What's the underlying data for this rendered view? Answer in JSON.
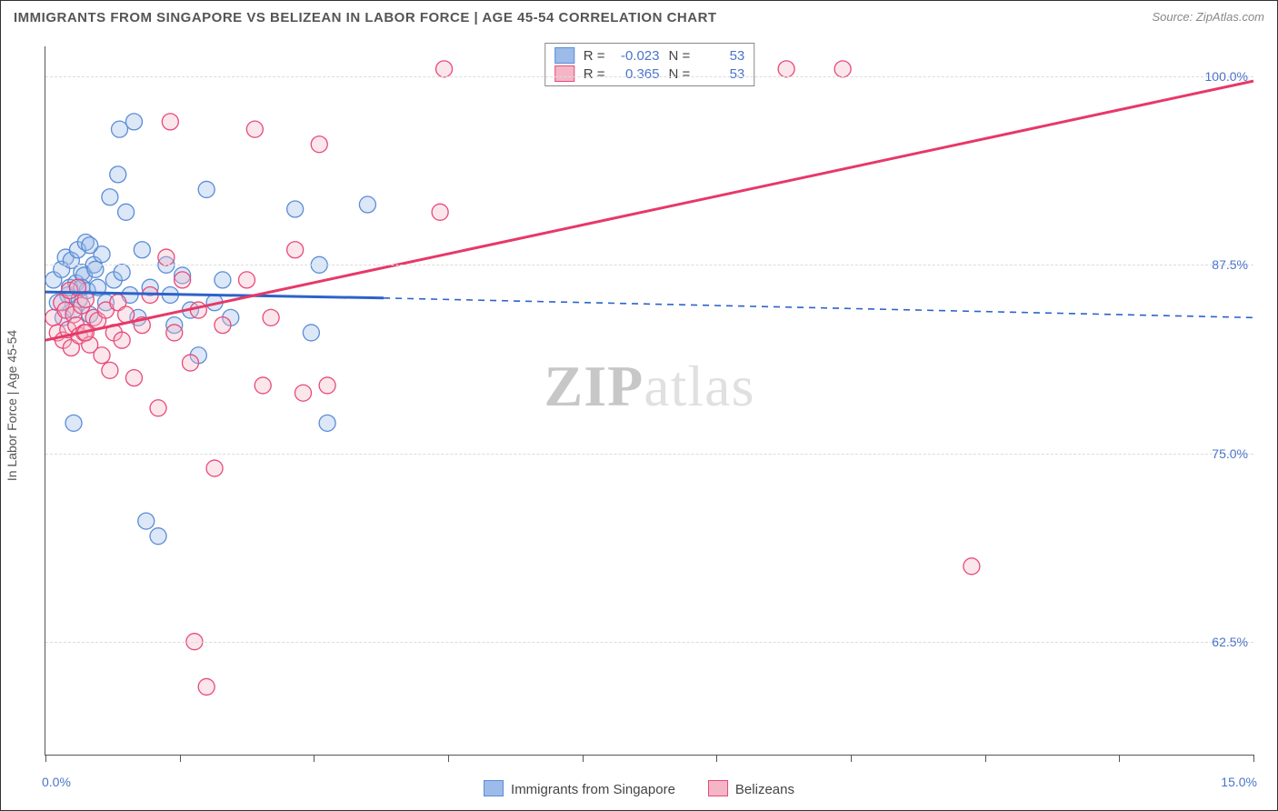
{
  "title": "IMMIGRANTS FROM SINGAPORE VS BELIZEAN IN LABOR FORCE | AGE 45-54 CORRELATION CHART",
  "source_label": "Source: ZipAtlas.com",
  "ylabel": "In Labor Force | Age 45-54",
  "watermark_a": "ZIP",
  "watermark_b": "atlas",
  "chart": {
    "type": "scatter",
    "background_color": "#ffffff",
    "grid_color": "#dcdcdc",
    "axis_color": "#555555",
    "xlim": [
      0.0,
      15.0
    ],
    "ylim": [
      55.0,
      102.0
    ],
    "xtick_positions": [
      0,
      1.67,
      3.33,
      5.0,
      6.67,
      8.33,
      10.0,
      11.67,
      13.33,
      15.0
    ],
    "ytick_values": [
      62.5,
      75.0,
      87.5,
      100.0
    ],
    "ytick_labels": [
      "62.5%",
      "75.0%",
      "87.5%",
      "100.0%"
    ],
    "xaxis_label_left": "0.0%",
    "xaxis_label_right": "15.0%",
    "marker_radius": 9,
    "marker_fill_opacity": 0.35,
    "marker_stroke_width": 1.3,
    "line_stroke_width": 3,
    "series": [
      {
        "name": "Immigrants from Singapore",
        "color_fill": "#9cbbe8",
        "color_stroke": "#5b8dd6",
        "line_color": "#2d63c8",
        "r_value": "-0.023",
        "n_value": "53",
        "trend_segments": [
          {
            "x1": 0.0,
            "y1": 85.7,
            "x2": 4.2,
            "y2": 85.3,
            "dashed": false
          },
          {
            "x1": 4.2,
            "y1": 85.3,
            "x2": 15.0,
            "y2": 84.0,
            "dashed": true
          }
        ],
        "points": [
          {
            "x": 0.1,
            "y": 86.5
          },
          {
            "x": 0.15,
            "y": 85.0
          },
          {
            "x": 0.2,
            "y": 87.2
          },
          {
            "x": 0.22,
            "y": 84.0
          },
          {
            "x": 0.25,
            "y": 88.0
          },
          {
            "x": 0.28,
            "y": 85.5
          },
          {
            "x": 0.3,
            "y": 86.0
          },
          {
            "x": 0.32,
            "y": 87.8
          },
          {
            "x": 0.35,
            "y": 84.5
          },
          {
            "x": 0.38,
            "y": 86.3
          },
          {
            "x": 0.4,
            "y": 88.5
          },
          {
            "x": 0.42,
            "y": 85.2
          },
          {
            "x": 0.45,
            "y": 87.0
          },
          {
            "x": 0.48,
            "y": 86.8
          },
          {
            "x": 0.5,
            "y": 89.0
          },
          {
            "x": 0.52,
            "y": 85.8
          },
          {
            "x": 0.55,
            "y": 84.2
          },
          {
            "x": 0.6,
            "y": 87.5
          },
          {
            "x": 0.65,
            "y": 86.0
          },
          {
            "x": 0.7,
            "y": 88.2
          },
          {
            "x": 0.75,
            "y": 85.0
          },
          {
            "x": 0.8,
            "y": 92.0
          },
          {
            "x": 0.85,
            "y": 86.5
          },
          {
            "x": 0.9,
            "y": 93.5
          },
          {
            "x": 0.92,
            "y": 96.5
          },
          {
            "x": 0.95,
            "y": 87.0
          },
          {
            "x": 1.0,
            "y": 91.0
          },
          {
            "x": 1.05,
            "y": 85.5
          },
          {
            "x": 1.1,
            "y": 97.0
          },
          {
            "x": 1.15,
            "y": 84.0
          },
          {
            "x": 1.2,
            "y": 88.5
          },
          {
            "x": 1.25,
            "y": 70.5
          },
          {
            "x": 1.3,
            "y": 86.0
          },
          {
            "x": 1.4,
            "y": 69.5
          },
          {
            "x": 1.5,
            "y": 87.5
          },
          {
            "x": 1.55,
            "y": 85.5
          },
          {
            "x": 1.6,
            "y": 83.5
          },
          {
            "x": 1.7,
            "y": 86.8
          },
          {
            "x": 1.8,
            "y": 84.5
          },
          {
            "x": 1.9,
            "y": 81.5
          },
          {
            "x": 2.0,
            "y": 92.5
          },
          {
            "x": 2.1,
            "y": 85.0
          },
          {
            "x": 2.2,
            "y": 86.5
          },
          {
            "x": 2.3,
            "y": 84.0
          },
          {
            "x": 3.1,
            "y": 91.2
          },
          {
            "x": 3.3,
            "y": 83.0
          },
          {
            "x": 3.4,
            "y": 87.5
          },
          {
            "x": 3.5,
            "y": 77.0
          },
          {
            "x": 4.0,
            "y": 91.5
          },
          {
            "x": 0.35,
            "y": 77.0
          },
          {
            "x": 0.55,
            "y": 88.8
          },
          {
            "x": 0.45,
            "y": 86.0
          },
          {
            "x": 0.62,
            "y": 87.2
          }
        ]
      },
      {
        "name": "Belizeans",
        "color_fill": "#f4b6c6",
        "color_stroke": "#e84a7a",
        "line_color": "#e63968",
        "r_value": "0.365",
        "n_value": "53",
        "trend_segments": [
          {
            "x1": 0.0,
            "y1": 82.5,
            "x2": 15.0,
            "y2": 99.7,
            "dashed": false
          }
        ],
        "points": [
          {
            "x": 0.1,
            "y": 84.0
          },
          {
            "x": 0.15,
            "y": 83.0
          },
          {
            "x": 0.2,
            "y": 85.0
          },
          {
            "x": 0.22,
            "y": 82.5
          },
          {
            "x": 0.25,
            "y": 84.5
          },
          {
            "x": 0.28,
            "y": 83.2
          },
          {
            "x": 0.3,
            "y": 85.8
          },
          {
            "x": 0.32,
            "y": 82.0
          },
          {
            "x": 0.35,
            "y": 84.2
          },
          {
            "x": 0.38,
            "y": 83.5
          },
          {
            "x": 0.4,
            "y": 86.0
          },
          {
            "x": 0.42,
            "y": 82.8
          },
          {
            "x": 0.45,
            "y": 84.8
          },
          {
            "x": 0.48,
            "y": 83.0
          },
          {
            "x": 0.5,
            "y": 85.2
          },
          {
            "x": 0.55,
            "y": 82.2
          },
          {
            "x": 0.6,
            "y": 84.0
          },
          {
            "x": 0.65,
            "y": 83.8
          },
          {
            "x": 0.7,
            "y": 81.5
          },
          {
            "x": 0.75,
            "y": 84.5
          },
          {
            "x": 0.8,
            "y": 80.5
          },
          {
            "x": 0.85,
            "y": 83.0
          },
          {
            "x": 0.9,
            "y": 85.0
          },
          {
            "x": 0.95,
            "y": 82.5
          },
          {
            "x": 1.0,
            "y": 84.2
          },
          {
            "x": 1.1,
            "y": 80.0
          },
          {
            "x": 1.2,
            "y": 83.5
          },
          {
            "x": 1.3,
            "y": 85.5
          },
          {
            "x": 1.4,
            "y": 78.0
          },
          {
            "x": 1.5,
            "y": 88.0
          },
          {
            "x": 1.55,
            "y": 97.0
          },
          {
            "x": 1.6,
            "y": 83.0
          },
          {
            "x": 1.7,
            "y": 86.5
          },
          {
            "x": 1.8,
            "y": 81.0
          },
          {
            "x": 1.85,
            "y": 62.5
          },
          {
            "x": 1.9,
            "y": 84.5
          },
          {
            "x": 2.0,
            "y": 59.5
          },
          {
            "x": 2.1,
            "y": 74.0
          },
          {
            "x": 2.2,
            "y": 83.5
          },
          {
            "x": 2.5,
            "y": 86.5
          },
          {
            "x": 2.6,
            "y": 96.5
          },
          {
            "x": 2.7,
            "y": 79.5
          },
          {
            "x": 2.8,
            "y": 84.0
          },
          {
            "x": 3.1,
            "y": 88.5
          },
          {
            "x": 3.2,
            "y": 79.0
          },
          {
            "x": 3.4,
            "y": 95.5
          },
          {
            "x": 3.5,
            "y": 79.5
          },
          {
            "x": 4.9,
            "y": 91.0
          },
          {
            "x": 4.95,
            "y": 100.5
          },
          {
            "x": 9.2,
            "y": 100.5
          },
          {
            "x": 9.9,
            "y": 100.5
          },
          {
            "x": 11.5,
            "y": 67.5
          },
          {
            "x": 0.5,
            "y": 83.0
          }
        ]
      }
    ]
  },
  "legend_bottom": [
    {
      "label": "Immigrants from Singapore",
      "fill": "#9cbbe8",
      "stroke": "#5b8dd6"
    },
    {
      "label": "Belizeans",
      "fill": "#f4b6c6",
      "stroke": "#e84a7a"
    }
  ]
}
